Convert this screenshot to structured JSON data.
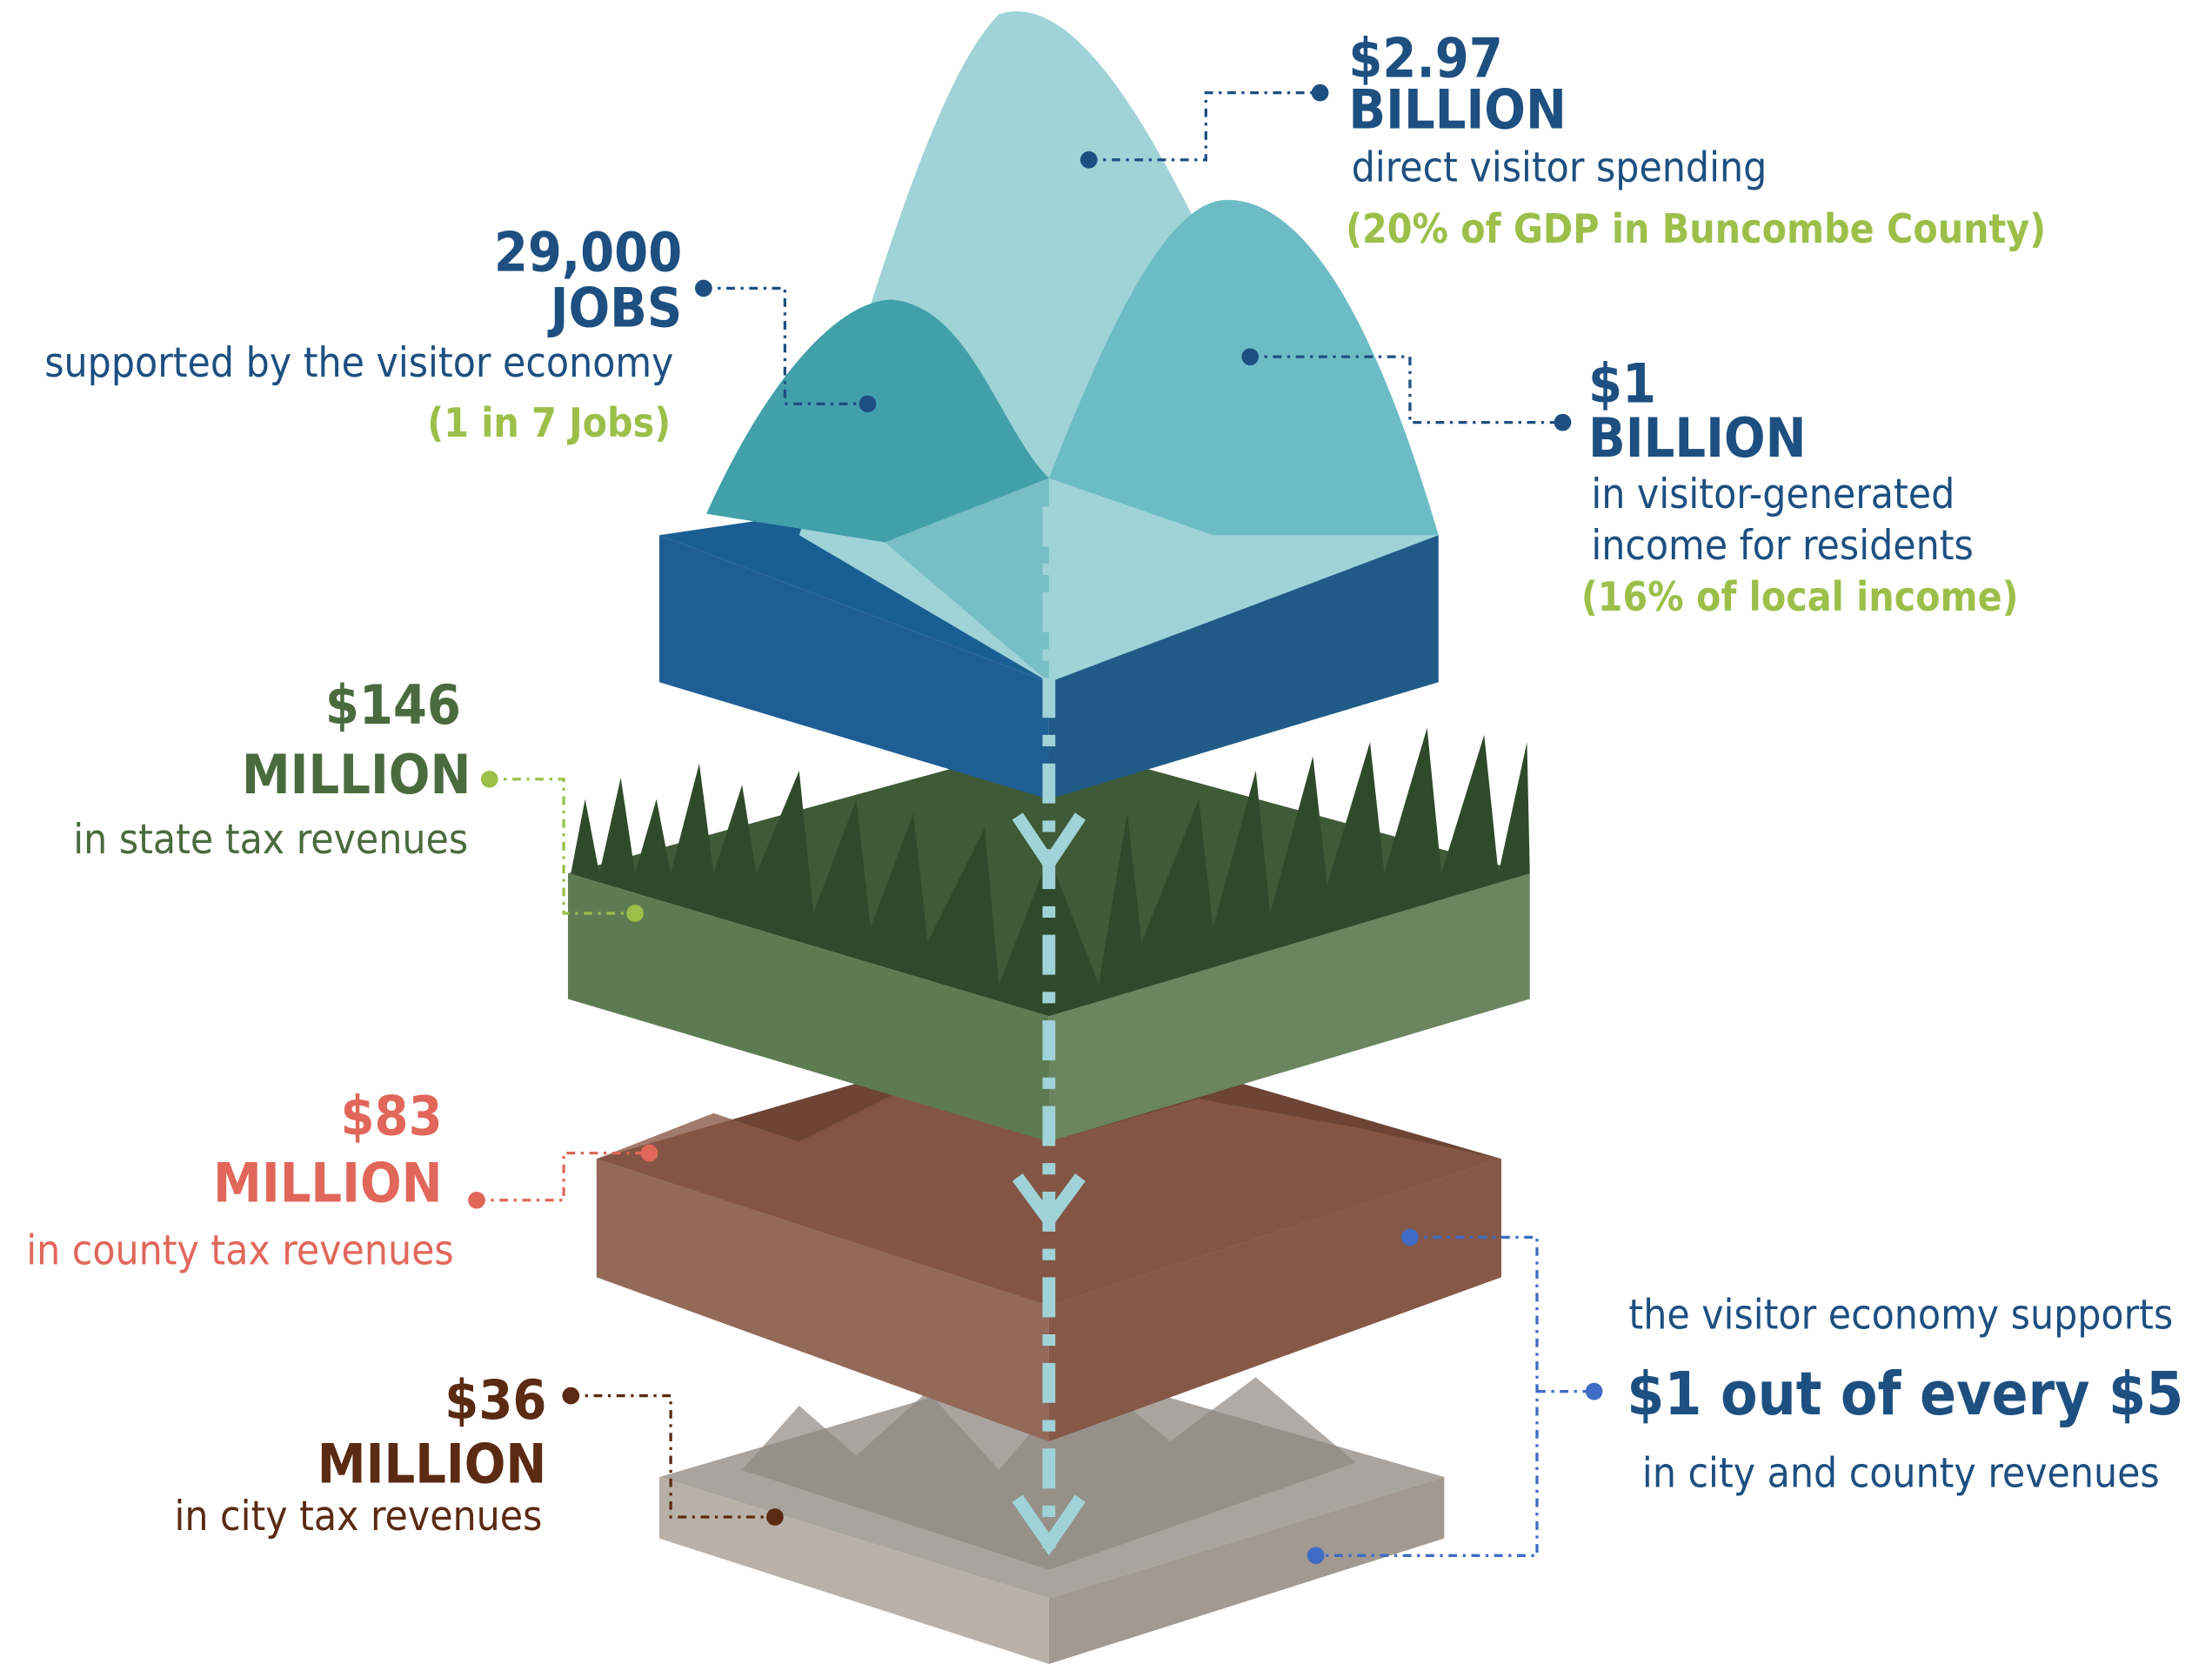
{
  "callouts": [
    {
      "figure": "$2.97",
      "unit": "BILLION",
      "description": "direct visitor spending",
      "note": "(20% of GDP in Buncombe County)"
    },
    {
      "figure": "29,000",
      "unit": "JOBS",
      "description": "supported by the visitor economy",
      "note": "(1 in 7 Jobs)"
    },
    {
      "figure": "$1",
      "unit": "BILLION",
      "description_lines": [
        "in visitor-generated",
        "income for residents"
      ],
      "note": "(16% of local income)"
    },
    {
      "figure": "$146",
      "unit": "MILLION",
      "description": "in state tax revenues"
    },
    {
      "figure": "$83",
      "unit": "MILLION",
      "description": "in county tax revenues"
    },
    {
      "figure": "$36",
      "unit": "MILLION",
      "description": "in city tax revenues"
    },
    {
      "lead": "the visitor economy supports",
      "figure": "$1 out of every $5",
      "description": "in city and county revenues"
    }
  ]
}
